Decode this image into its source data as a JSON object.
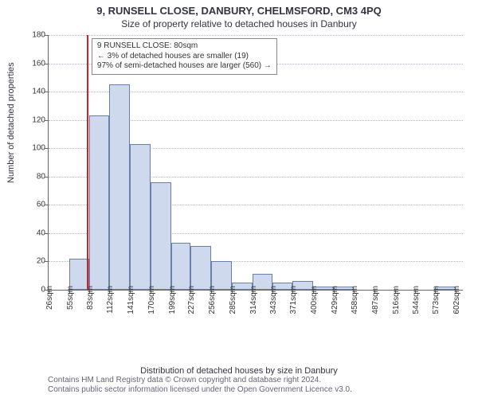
{
  "title": "9, RUNSELL CLOSE, DANBURY, CHELMSFORD, CM3 4PQ",
  "subtitle": "Size of property relative to detached houses in Danbury",
  "ylabel": "Number of detached properties",
  "xlabel": "Distribution of detached houses by size in Danbury",
  "footnote1": "Contains HM Land Registry data © Crown copyright and database right 2024.",
  "footnote2": "Contains public sector information licensed under the Open Government Licence v3.0.",
  "chart": {
    "type": "histogram",
    "ylim": [
      0,
      180
    ],
    "ytick_step": 20,
    "x_range": [
      26,
      612
    ],
    "bar_color": "#cfd9ee",
    "bar_border": "#6b7fa8",
    "grid_color": "#b8b8c8",
    "axis_color": "#666666",
    "background_color": "#ffffff",
    "title_fontsize": 13,
    "subtitle_fontsize": 12,
    "label_fontsize": 11,
    "tick_fontsize": 10,
    "reference": {
      "x": 80,
      "color": "#cc2222"
    },
    "callout": {
      "line1": "9 RUNSELL CLOSE: 80sqm",
      "line2": "← 3% of detached houses are smaller (19)",
      "line3": "97% of semi-detached houses are larger (560) →"
    },
    "x_ticks": [
      {
        "x": 26,
        "label": "26sqm"
      },
      {
        "x": 55,
        "label": "55sqm"
      },
      {
        "x": 83,
        "label": "83sqm"
      },
      {
        "x": 112,
        "label": "112sqm"
      },
      {
        "x": 141,
        "label": "141sqm"
      },
      {
        "x": 170,
        "label": "170sqm"
      },
      {
        "x": 199,
        "label": "199sqm"
      },
      {
        "x": 227,
        "label": "227sqm"
      },
      {
        "x": 256,
        "label": "256sqm"
      },
      {
        "x": 285,
        "label": "285sqm"
      },
      {
        "x": 314,
        "label": "314sqm"
      },
      {
        "x": 343,
        "label": "343sqm"
      },
      {
        "x": 371,
        "label": "371sqm"
      },
      {
        "x": 400,
        "label": "400sqm"
      },
      {
        "x": 429,
        "label": "429sqm"
      },
      {
        "x": 458,
        "label": "458sqm"
      },
      {
        "x": 487,
        "label": "487sqm"
      },
      {
        "x": 516,
        "label": "516sqm"
      },
      {
        "x": 544,
        "label": "544sqm"
      },
      {
        "x": 573,
        "label": "573sqm"
      },
      {
        "x": 602,
        "label": "602sqm"
      }
    ],
    "bars": [
      {
        "x0": 55,
        "x1": 83,
        "y": 22
      },
      {
        "x0": 83,
        "x1": 112,
        "y": 123
      },
      {
        "x0": 112,
        "x1": 141,
        "y": 145
      },
      {
        "x0": 141,
        "x1": 170,
        "y": 103
      },
      {
        "x0": 170,
        "x1": 199,
        "y": 76
      },
      {
        "x0": 199,
        "x1": 227,
        "y": 33
      },
      {
        "x0": 227,
        "x1": 256,
        "y": 31
      },
      {
        "x0": 256,
        "x1": 285,
        "y": 20
      },
      {
        "x0": 285,
        "x1": 314,
        "y": 5
      },
      {
        "x0": 314,
        "x1": 343,
        "y": 11
      },
      {
        "x0": 343,
        "x1": 371,
        "y": 5
      },
      {
        "x0": 371,
        "x1": 400,
        "y": 6
      },
      {
        "x0": 400,
        "x1": 429,
        "y": 2
      },
      {
        "x0": 429,
        "x1": 458,
        "y": 2
      },
      {
        "x0": 573,
        "x1": 602,
        "y": 2
      }
    ]
  }
}
